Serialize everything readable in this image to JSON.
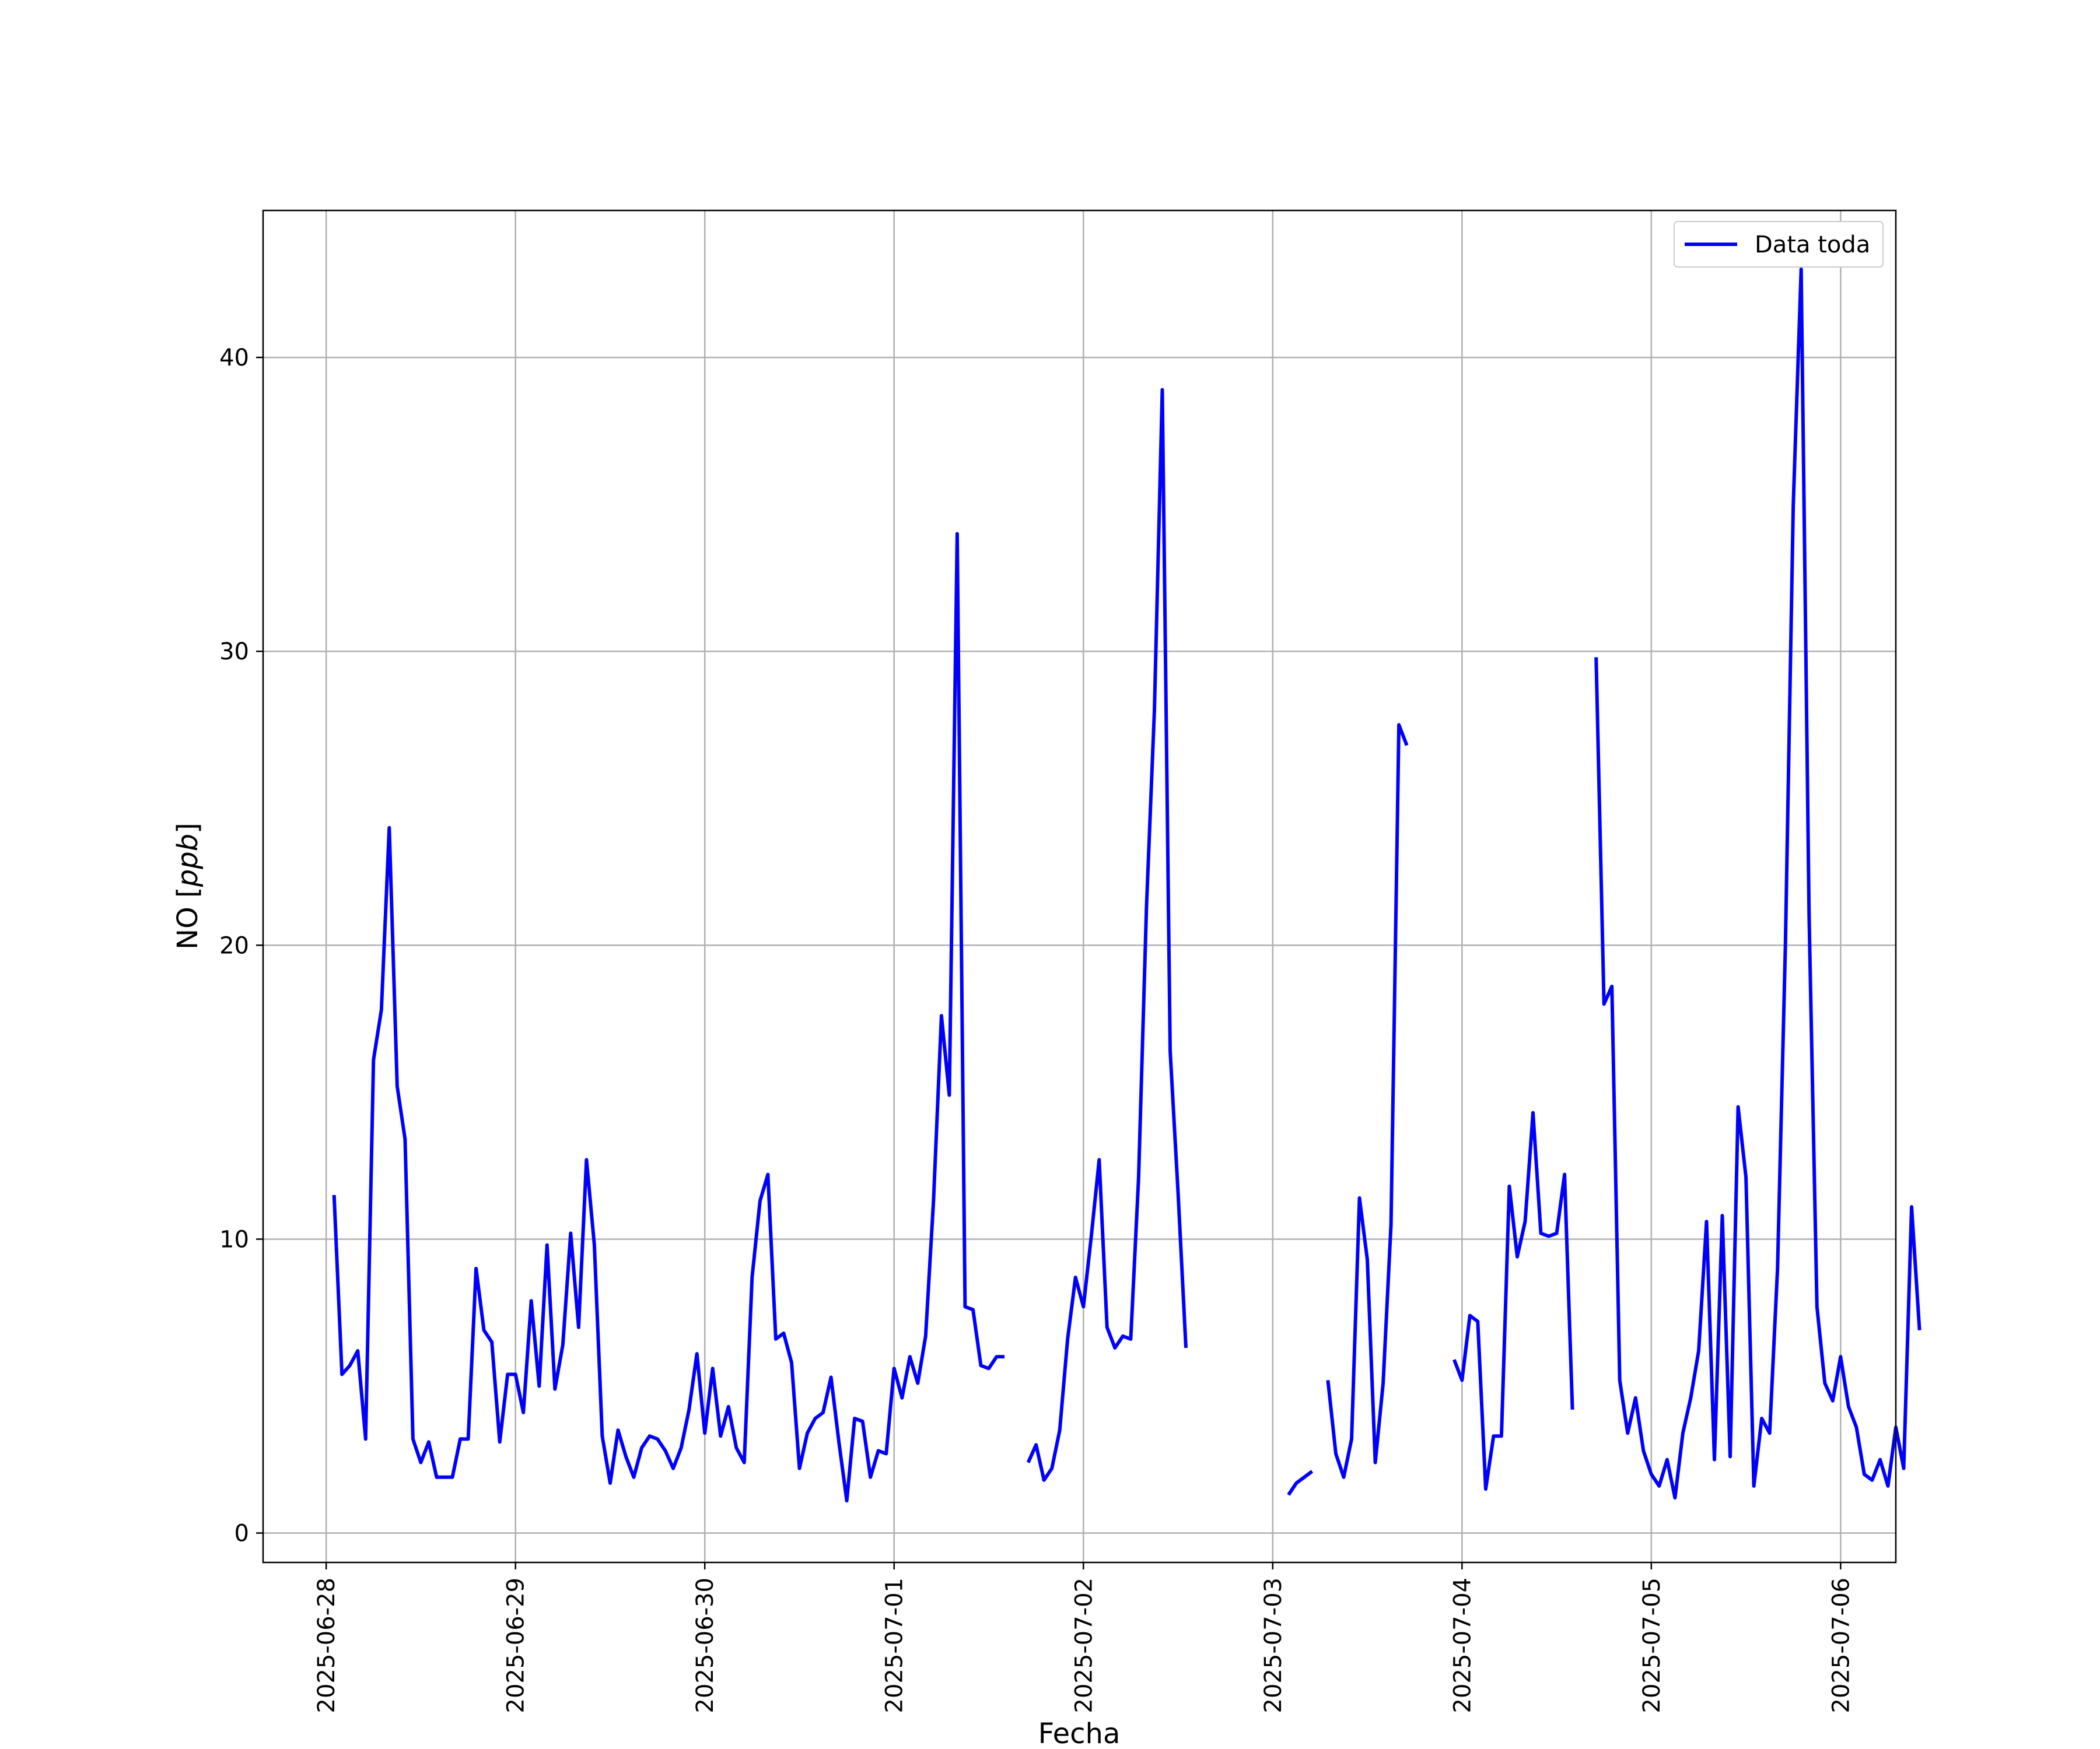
{
  "chart_data": {
    "type": "line",
    "xlabel": "Fecha",
    "ylabel_text": "NO",
    "ylabel_unit": "ppb",
    "ylim": [
      -1,
      45
    ],
    "yticks": [
      0,
      10,
      20,
      30,
      40
    ],
    "xlim": [
      "2025-06-27T16:00",
      "2025-07-06T07:00"
    ],
    "xticks": [
      "2025-06-28",
      "2025-06-29",
      "2025-06-30",
      "2025-07-01",
      "2025-07-02",
      "2025-07-03",
      "2025-07-04",
      "2025-07-05",
      "2025-07-06"
    ],
    "grid": true,
    "legend": {
      "position": "top-right",
      "entries": [
        "Data toda"
      ]
    },
    "series": [
      {
        "name": "Data toda",
        "color": "#0000ff",
        "start": "2025-06-28T01:00",
        "step_hours": 1,
        "values": [
          11.5,
          5.4,
          5.7,
          6.2,
          3.2,
          16.1,
          17.8,
          24.0,
          15.2,
          13.4,
          3.2,
          2.4,
          3.1,
          1.9,
          1.9,
          1.9,
          3.2,
          3.2,
          9.0,
          6.9,
          6.5,
          3.1,
          5.4,
          5.4,
          4.1,
          7.9,
          5.0,
          9.8,
          4.9,
          6.4,
          10.2,
          7.0,
          12.7,
          9.8,
          3.3,
          1.7,
          3.5,
          2.6,
          1.9,
          2.9,
          3.3,
          3.2,
          2.8,
          2.2,
          2.9,
          4.2,
          6.1,
          3.4,
          5.6,
          3.3,
          4.3,
          2.9,
          2.4,
          8.7,
          11.3,
          12.2,
          6.6,
          6.8,
          5.8,
          2.2,
          3.4,
          3.9,
          4.1,
          5.3,
          3.1,
          1.1,
          3.9,
          3.8,
          1.9,
          2.8,
          2.7,
          5.6,
          4.6,
          6.0,
          5.1,
          6.7,
          11.3,
          17.6,
          14.9,
          34.0,
          7.7,
          7.6,
          5.7,
          5.6,
          6.0,
          6.0,
          null,
          null,
          2.4,
          3.0,
          1.8,
          2.2,
          3.5,
          6.6,
          8.7,
          7.7,
          10.1,
          12.7,
          7.0,
          6.3,
          6.7,
          6.6,
          12.1,
          21.3,
          28.0,
          38.9,
          16.4,
          11.6,
          6.3,
          null,
          null,
          null,
          null,
          null,
          null,
          null,
          null,
          null,
          null,
          null,
          null,
          1.3,
          1.7,
          1.9,
          2.1,
          null,
          5.2,
          2.7,
          1.9,
          3.2,
          11.4,
          9.3,
          2.4,
          5.1,
          10.5,
          27.5,
          26.8,
          null,
          null,
          null,
          null,
          null,
          5.9,
          5.2,
          7.4,
          7.2,
          1.5,
          3.3,
          3.3,
          11.8,
          9.4,
          10.6,
          14.3,
          10.2,
          10.1,
          10.2,
          12.2,
          4.2,
          null,
          null,
          29.8,
          18.0,
          18.6,
          5.2,
          3.4,
          4.6,
          2.8,
          2.0,
          1.6,
          2.5,
          1.2,
          3.4,
          4.6,
          6.2,
          10.6,
          2.5,
          10.8,
          2.6,
          14.5,
          12.1,
          1.6,
          3.9,
          3.4,
          9.0,
          20.0,
          35.0,
          43.0,
          21.0,
          7.7,
          5.1,
          4.5,
          6.0,
          4.3,
          3.6,
          2.0,
          1.8,
          2.5,
          1.6,
          3.6,
          2.2,
          11.1,
          6.9
        ]
      }
    ]
  }
}
